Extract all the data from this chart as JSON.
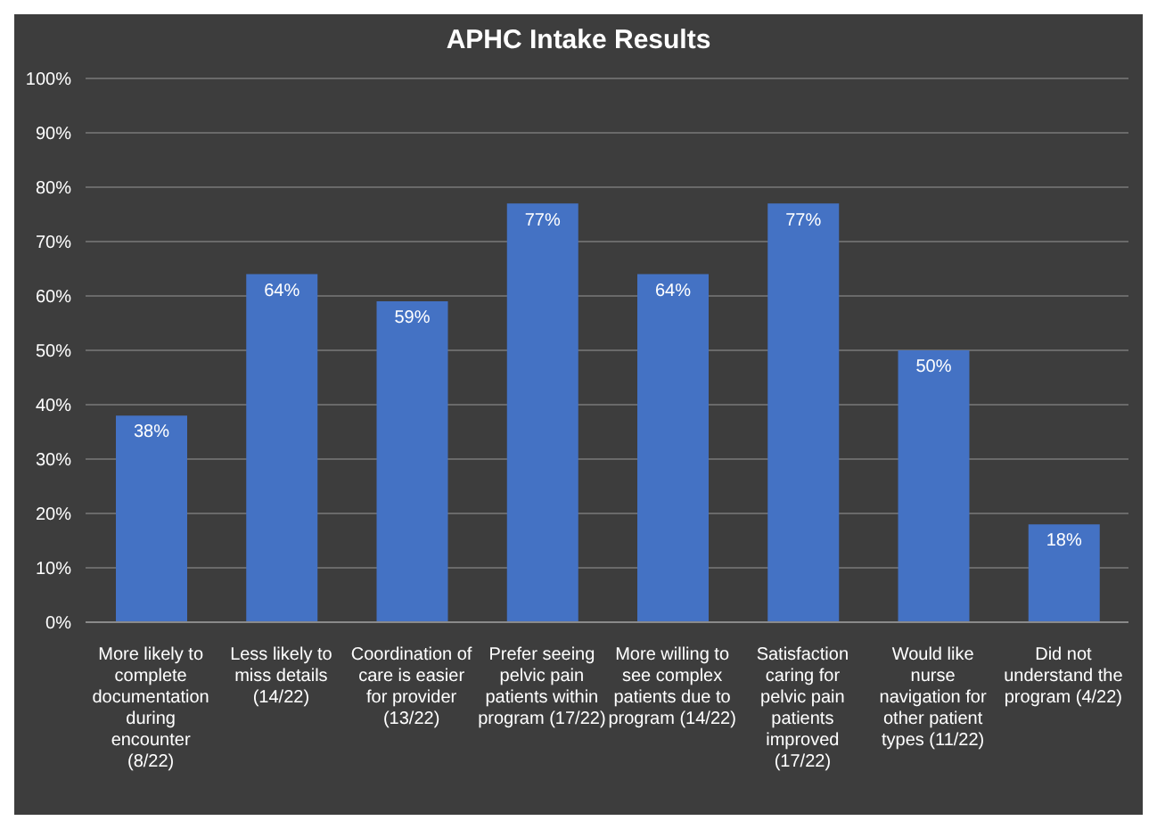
{
  "chart_data": {
    "type": "bar",
    "title": "APHC Intake Results",
    "categories": [
      "More likely to complete documentation during encounter (8/22)",
      "Less likely to miss details (14/22)",
      "Coordination of care is easier for provider (13/22)",
      "Prefer seeing pelvic pain patients within program (17/22)",
      "More willing to see complex patients due to program (14/22)",
      "Satisfaction caring for pelvic pain patients improved (17/22)",
      "Would like nurse navigation for other patient types (11/22)",
      "Did not understand the program (4/22)"
    ],
    "values": [
      38,
      64,
      59,
      77,
      64,
      77,
      50,
      18
    ],
    "value_labels": [
      "38%",
      "64%",
      "59%",
      "77%",
      "64%",
      "77%",
      "50%",
      "18%"
    ],
    "color": "#4472c4",
    "ylim": [
      0,
      100
    ],
    "yticks": [
      {
        "value": 0,
        "label": "0%"
      },
      {
        "value": 10,
        "label": "10%"
      },
      {
        "value": 20,
        "label": "20%"
      },
      {
        "value": 30,
        "label": "30%"
      },
      {
        "value": 40,
        "label": "40%"
      },
      {
        "value": 50,
        "label": "50%"
      },
      {
        "value": 60,
        "label": "60%"
      },
      {
        "value": 70,
        "label": "70%"
      },
      {
        "value": 80,
        "label": "80%"
      },
      {
        "value": 90,
        "label": "90%"
      },
      {
        "value": 100,
        "label": "100%"
      }
    ],
    "grid": "y"
  }
}
